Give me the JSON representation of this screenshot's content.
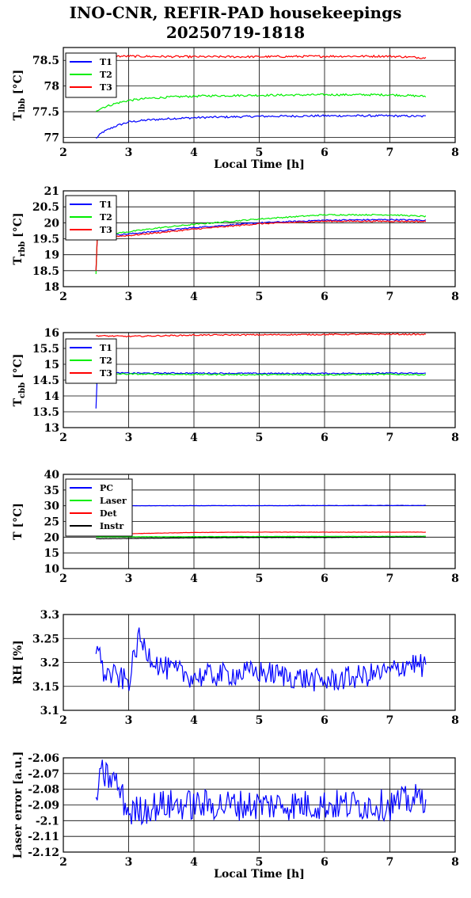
{
  "title": {
    "line1": "INO-CNR, REFIR-PAD housekeepings",
    "line2": "20250719-1818"
  },
  "chart_data": [
    {
      "type": "line",
      "xlabel": "Local Time [h]",
      "ylabel": "T",
      "ylabel_sub": "lbb",
      "ylabel_unit": " [°C]",
      "xlim": [
        2,
        8
      ],
      "ylim": [
        76.9,
        78.75
      ],
      "xticks": [
        2,
        3,
        4,
        5,
        6,
        7,
        8
      ],
      "yticks": [
        77,
        77.5,
        78,
        78.5
      ],
      "ytick_labels": [
        "77",
        "77.5",
        "78",
        "78.5"
      ],
      "grid": true,
      "legend": "top-left",
      "series": [
        {
          "name": "T1",
          "color": "#0000ff",
          "x": [
            2.5,
            2.6,
            2.8,
            3.0,
            3.3,
            3.7,
            4.2,
            5.0,
            6.0,
            7.0,
            7.55
          ],
          "y": [
            76.98,
            77.1,
            77.22,
            77.3,
            77.34,
            77.37,
            77.39,
            77.41,
            77.42,
            77.42,
            77.41
          ],
          "noise": 0.02
        },
        {
          "name": "T2",
          "color": "#00ee00",
          "x": [
            2.5,
            2.6,
            2.8,
            3.0,
            3.3,
            3.7,
            4.2,
            5.0,
            6.0,
            7.0,
            7.55
          ],
          "y": [
            77.52,
            77.58,
            77.66,
            77.72,
            77.76,
            77.79,
            77.81,
            77.82,
            77.83,
            77.83,
            77.8
          ],
          "noise": 0.02
        },
        {
          "name": "T3",
          "color": "#ff0000",
          "x": [
            2.5,
            3.0,
            4.0,
            5.0,
            6.0,
            7.0,
            7.55
          ],
          "y": [
            78.58,
            78.58,
            78.57,
            78.57,
            78.58,
            78.58,
            78.55
          ],
          "noise": 0.02
        }
      ]
    },
    {
      "type": "line",
      "xlabel": "",
      "ylabel": "T",
      "ylabel_sub": "rbb",
      "ylabel_unit": " [°C]",
      "xlim": [
        2,
        8
      ],
      "ylim": [
        18,
        21
      ],
      "xticks": [
        2,
        3,
        4,
        5,
        6,
        7,
        8
      ],
      "yticks": [
        18,
        18.5,
        19,
        19.5,
        20,
        20.5,
        21
      ],
      "ytick_labels": [
        "18",
        "18.5",
        "19",
        "19.5",
        "20",
        "20.5",
        "21"
      ],
      "grid": true,
      "legend": "top-left",
      "series": [
        {
          "name": "T1",
          "color": "#0000ff",
          "x": [
            2.5,
            2.52,
            2.6,
            3.0,
            3.5,
            4.0,
            5.0,
            6.0,
            7.0,
            7.55
          ],
          "y": [
            18.5,
            19.55,
            19.6,
            19.65,
            19.75,
            19.85,
            20.0,
            20.08,
            20.1,
            20.08
          ],
          "noise": 0.02
        },
        {
          "name": "T2",
          "color": "#00ee00",
          "x": [
            2.5,
            2.52,
            2.6,
            3.0,
            3.5,
            4.0,
            5.0,
            6.0,
            7.0,
            7.55
          ],
          "y": [
            18.4,
            19.6,
            19.62,
            19.72,
            19.85,
            19.95,
            20.12,
            20.25,
            20.25,
            20.2
          ],
          "noise": 0.02
        },
        {
          "name": "T3",
          "color": "#ff0000",
          "x": [
            2.5,
            2.52,
            2.6,
            3.0,
            3.5,
            4.0,
            5.0,
            6.0,
            7.0,
            7.55
          ],
          "y": [
            18.5,
            19.55,
            19.55,
            19.6,
            19.7,
            19.8,
            19.97,
            20.05,
            20.05,
            20.04
          ],
          "noise": 0.02
        }
      ]
    },
    {
      "type": "line",
      "xlabel": "",
      "ylabel": "T",
      "ylabel_sub": "cbb",
      "ylabel_unit": " [°C]",
      "xlim": [
        2,
        8
      ],
      "ylim": [
        13,
        16
      ],
      "xticks": [
        2,
        3,
        4,
        5,
        6,
        7,
        8
      ],
      "yticks": [
        13,
        13.5,
        14,
        14.5,
        15,
        15.5,
        16
      ],
      "ytick_labels": [
        "13",
        "13.5",
        "14",
        "14.5",
        "15",
        "15.5",
        "16"
      ],
      "grid": true,
      "legend": "top-left",
      "series": [
        {
          "name": "T1",
          "color": "#0000ff",
          "x": [
            2.5,
            2.52,
            2.6,
            3.0,
            4.0,
            5.0,
            6.0,
            7.0,
            7.55
          ],
          "y": [
            13.6,
            14.7,
            14.73,
            14.72,
            14.72,
            14.71,
            14.71,
            14.72,
            14.71
          ],
          "noise": 0.02
        },
        {
          "name": "T2",
          "color": "#00ee00",
          "x": [
            2.5,
            2.52,
            2.6,
            3.0,
            4.0,
            5.0,
            6.0,
            7.0,
            7.55
          ],
          "y": [
            14.4,
            14.7,
            14.7,
            14.69,
            14.68,
            14.67,
            14.67,
            14.68,
            14.67
          ],
          "noise": 0.02
        },
        {
          "name": "T3",
          "color": "#ff0000",
          "x": [
            2.5,
            3.0,
            4.0,
            5.0,
            6.0,
            7.0,
            7.55
          ],
          "y": [
            15.9,
            15.88,
            15.92,
            15.93,
            15.94,
            15.95,
            15.94
          ],
          "noise": 0.02
        }
      ]
    },
    {
      "type": "line",
      "xlabel": "",
      "ylabel": "T [°C]",
      "ylabel_sub": "",
      "ylabel_unit": "",
      "xlim": [
        2,
        8
      ],
      "ylim": [
        10,
        40
      ],
      "xticks": [
        2,
        3,
        4,
        5,
        6,
        7,
        8
      ],
      "yticks": [
        10,
        15,
        20,
        25,
        30,
        35,
        40
      ],
      "ytick_labels": [
        "10",
        "15",
        "20",
        "25",
        "30",
        "35",
        "40"
      ],
      "grid": true,
      "legend": "top-left",
      "series": [
        {
          "name": "PC",
          "color": "#0000ff",
          "x": [
            2.5,
            7.55
          ],
          "y": [
            30.0,
            30.1
          ],
          "noise": 0.05
        },
        {
          "name": "Laser",
          "color": "#00ee00",
          "x": [
            2.5,
            7.55
          ],
          "y": [
            20.1,
            20.3
          ],
          "noise": 0.05
        },
        {
          "name": "Det",
          "color": "#ff0000",
          "x": [
            2.5,
            3.0,
            4.0,
            5.0,
            6.0,
            7.0,
            7.55
          ],
          "y": [
            21.0,
            21.1,
            21.5,
            21.6,
            21.6,
            21.6,
            21.6
          ],
          "noise": 0.05
        },
        {
          "name": "Instr",
          "color": "#000000",
          "x": [
            2.5,
            3.0,
            4.0,
            5.0,
            6.0,
            7.0,
            7.55
          ],
          "y": [
            19.5,
            19.6,
            19.8,
            19.9,
            19.9,
            20.0,
            20.0
          ],
          "noise": 0.05
        }
      ]
    },
    {
      "type": "line",
      "xlabel": "",
      "ylabel": "RH [%]",
      "ylabel_sub": "",
      "ylabel_unit": "",
      "xlim": [
        2,
        8
      ],
      "ylim": [
        3.1,
        3.3
      ],
      "xticks": [
        2,
        3,
        4,
        5,
        6,
        7,
        8
      ],
      "yticks": [
        3.1,
        3.15,
        3.2,
        3.25,
        3.3
      ],
      "ytick_labels": [
        "3.1",
        "3.15",
        "3.2",
        "3.25",
        "3.3"
      ],
      "grid": true,
      "legend": "none",
      "series": [
        {
          "color": "#0000ff",
          "x": [
            2.5,
            2.52,
            2.6,
            2.8,
            3.0,
            3.15,
            3.3,
            3.5,
            4.0,
            5.0,
            6.0,
            7.0,
            7.3,
            7.55
          ],
          "y": [
            3.235,
            3.25,
            3.18,
            3.17,
            3.16,
            3.25,
            3.22,
            3.19,
            3.17,
            3.18,
            3.16,
            3.18,
            3.2,
            3.19
          ],
          "noise": 0.025
        }
      ]
    },
    {
      "type": "line",
      "xlabel": "Local Time [h]",
      "ylabel": "Laser error [a.u.]",
      "ylabel_sub": "",
      "ylabel_unit": "",
      "xlim": [
        2,
        8
      ],
      "ylim": [
        -2.12,
        -2.06
      ],
      "xticks": [
        2,
        3,
        4,
        5,
        6,
        7,
        8
      ],
      "yticks": [
        -2.12,
        -2.11,
        -2.1,
        -2.09,
        -2.08,
        -2.07,
        -2.06
      ],
      "ytick_labels": [
        "-2.12",
        "-2.11",
        "-2.1",
        "-2.09",
        "-2.08",
        "-2.07",
        "-2.06"
      ],
      "grid": true,
      "legend": "none",
      "series": [
        {
          "color": "#0000ff",
          "x": [
            2.5,
            2.6,
            2.8,
            3.0,
            3.5,
            4.0,
            5.0,
            6.0,
            7.0,
            7.55
          ],
          "y": [
            -2.085,
            -2.07,
            -2.075,
            -2.095,
            -2.09,
            -2.09,
            -2.09,
            -2.09,
            -2.09,
            -2.085
          ],
          "noise": 0.01
        }
      ]
    }
  ]
}
